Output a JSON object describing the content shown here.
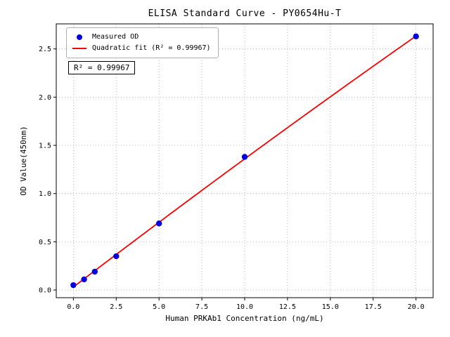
{
  "title": "ELISA Standard Curve - PY0654Hu-T",
  "annotation": "R² = 0.99967",
  "legend": {
    "items": [
      {
        "label": "Measured OD",
        "type": "point",
        "color": "#0000e0"
      },
      {
        "label": "Quadratic fit (R² = 0.99967)",
        "type": "line",
        "color": "#ff0000"
      }
    ]
  },
  "colors": {
    "points": "#0000e0",
    "fit_line": "#ff0000",
    "grid": "#aaaaaa",
    "axis": "#000000"
  },
  "chart_data": {
    "type": "scatter",
    "title": "ELISA Standard Curve - PY0654Hu-T",
    "xlabel": "Human PRKAb1 Concentration (ng/mL)",
    "ylabel": "OD Value(450nm)",
    "series": [
      {
        "name": "Measured OD",
        "type": "scatter",
        "color": "#0000e0",
        "x": [
          0,
          0.625,
          1.25,
          2.5,
          5,
          10,
          20
        ],
        "y": [
          0.05,
          0.11,
          0.19,
          0.35,
          0.69,
          1.38,
          2.63
        ]
      },
      {
        "name": "Quadratic fit (R² = 0.99967)",
        "type": "line",
        "color": "#ff0000",
        "fit_coefficients": {
          "a": 0.0306,
          "b": 0.1357,
          "c": -0.000277
        },
        "x_range": [
          0,
          20
        ]
      }
    ],
    "xlim": [
      -1,
      21
    ],
    "ylim": [
      -0.08,
      2.76
    ],
    "xticks": [
      0,
      2.5,
      5,
      7.5,
      10,
      12.5,
      15,
      17.5,
      20
    ],
    "xtick_labels": [
      "0.0",
      "2.5",
      "5.0",
      "7.5",
      "10.0",
      "12.5",
      "15.0",
      "17.5",
      "20.0"
    ],
    "yticks": [
      0,
      0.5,
      1,
      1.5,
      2,
      2.5
    ],
    "ytick_labels": [
      "0.0",
      "0.5",
      "1.0",
      "1.5",
      "2.0",
      "2.5"
    ],
    "grid": true,
    "legend_position": "upper left",
    "r_squared": 0.99967
  }
}
